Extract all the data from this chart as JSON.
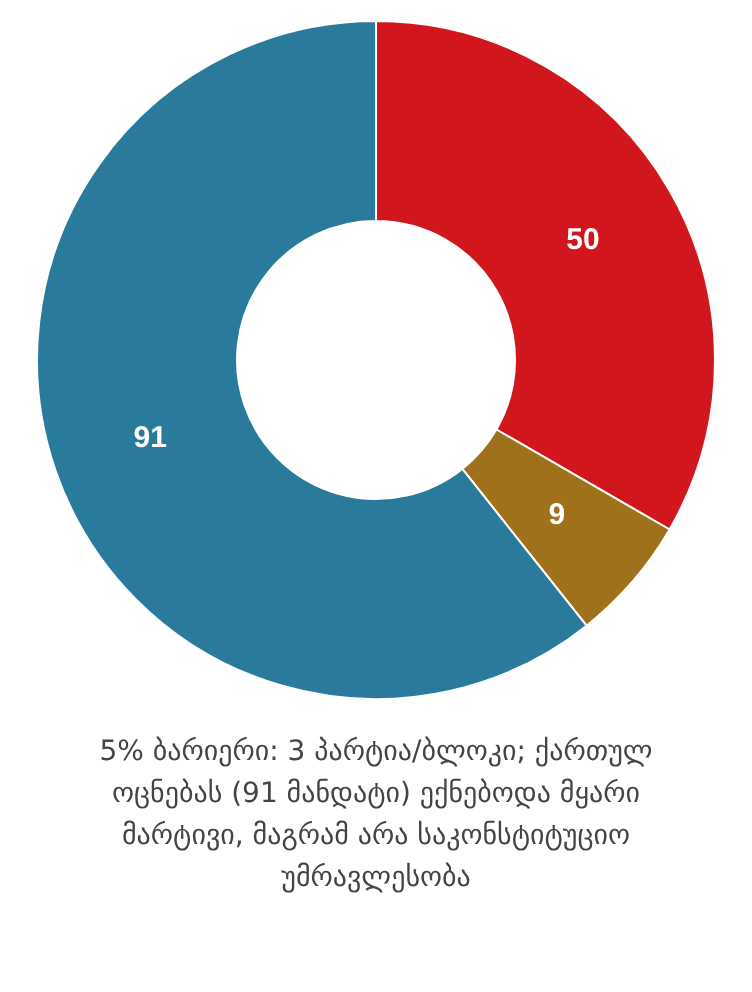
{
  "chart_data": {
    "type": "donut",
    "categories": [
      null,
      null,
      null
    ],
    "values": [
      50,
      9,
      91
    ],
    "colors": [
      "#d2161e",
      "#a0711b",
      "#2a7b9b"
    ],
    "data_labels": true,
    "legend": false,
    "annotations": [
      "5% ბარიერი: 3 პარტია/ბლოკი; ქართულ ოცნებას (91 მანდატი) ექნებოდა მყარი მარტივი, მაგრამ არა საკონსტიტუციო უმრავლესობა"
    ]
  }
}
